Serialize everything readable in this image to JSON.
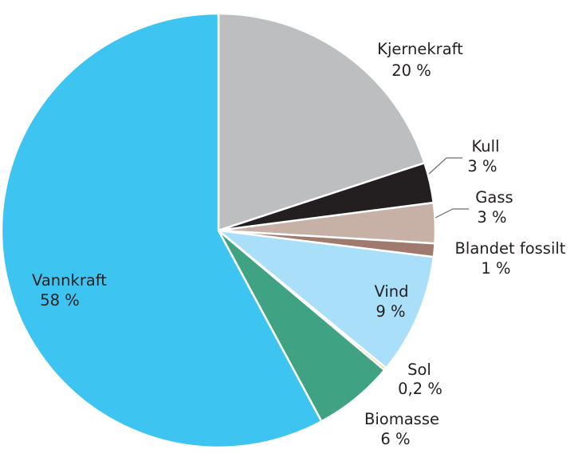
{
  "chart_data": {
    "type": "pie",
    "slices": [
      {
        "label": "Kjernekraft",
        "value_text": "20 %",
        "value": 20,
        "color": "#bcbec0"
      },
      {
        "label": "Kull",
        "value_text": "3 %",
        "value": 3,
        "color": "#231f20"
      },
      {
        "label": "Gass",
        "value_text": "3 %",
        "value": 3,
        "color": "#c7b1a7"
      },
      {
        "label": "Blandet fossilt",
        "value_text": "1 %",
        "value": 1,
        "color": "#a17a6e"
      },
      {
        "label": "Vind",
        "value_text": "9 %",
        "value": 9,
        "color": "#a9dff8"
      },
      {
        "label": "Sol",
        "value_text": "0,2 %",
        "value": 0.2,
        "color": "#f2d264"
      },
      {
        "label": "Biomasse",
        "value_text": "6 %",
        "value": 6,
        "color": "#3ea283"
      },
      {
        "label": "Vannkraft",
        "value_text": "58 %",
        "value": 58,
        "color": "#3ec4f1"
      }
    ]
  }
}
